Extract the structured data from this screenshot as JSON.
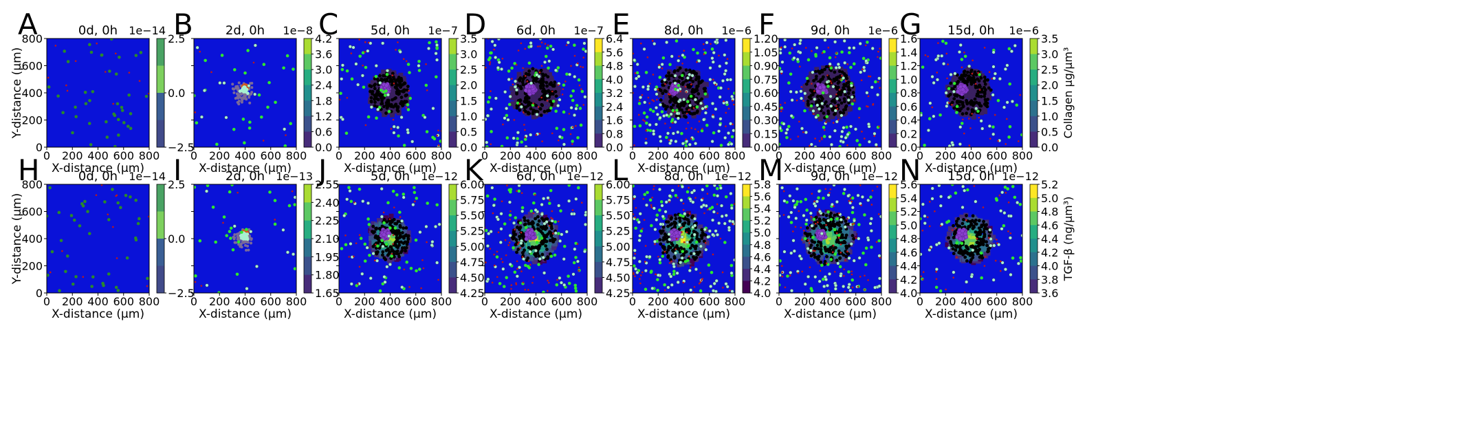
{
  "figure": {
    "x_label": "X-distance (μm)",
    "y_label": "Y-distance (μm)",
    "x_ticks": [
      "0",
      "200",
      "400",
      "600",
      "800"
    ],
    "y_ticks": [
      "0",
      "200",
      "400",
      "600",
      "800"
    ],
    "rows": [
      {
        "colorbar_label": "Collagen μg/μm³"
      },
      {
        "colorbar_label": "TGF-β (ng/μm³)"
      }
    ]
  },
  "colors": {
    "background": "#0a12d8",
    "ecm_dark": "#3a2060",
    "necrotic": "#000000",
    "tumor": "#8a3fd0",
    "fibroblast": "#2ee82e",
    "immune": "#a8f0d0",
    "debris": "#c01818"
  },
  "chart_data": [
    {
      "type": "heatmap",
      "letter": "A",
      "title": "0d, 0h",
      "cb_scale": "1e−14",
      "cb_ticks": [
        "2.5",
        "0.0",
        "−2.5"
      ],
      "cb_range": [
        -2.5,
        2.5
      ],
      "cb_bands": [
        "#4aa364",
        "#7dd05e",
        "#3b5f95",
        "#414b8a"
      ],
      "xlim": [
        0,
        800
      ],
      "ylim": [
        0,
        800
      ],
      "stage": 0
    },
    {
      "type": "heatmap",
      "letter": "B",
      "title": "2d, 0h",
      "cb_scale": "1e−8",
      "cb_ticks": [
        "4.2",
        "3.6",
        "3.0",
        "2.4",
        "1.8",
        "1.2",
        "0.6",
        "0.0"
      ],
      "cb_range": [
        0,
        4.2
      ],
      "xlim": [
        0,
        800
      ],
      "ylim": [
        0,
        800
      ],
      "stage": 1
    },
    {
      "type": "heatmap",
      "letter": "C",
      "title": "5d, 0h",
      "cb_scale": "1e−7",
      "cb_ticks": [
        "3.5",
        "3.0",
        "2.5",
        "2.0",
        "1.5",
        "1.0",
        "0.5",
        "0.0"
      ],
      "cb_range": [
        0,
        3.5
      ],
      "xlim": [
        0,
        800
      ],
      "ylim": [
        0,
        800
      ],
      "stage": 2
    },
    {
      "type": "heatmap",
      "letter": "D",
      "title": "6d, 0h",
      "cb_scale": "1e−7",
      "cb_ticks": [
        "6.4",
        "5.6",
        "4.8",
        "4.0",
        "3.2",
        "2.4",
        "1.6",
        "0.8",
        "0.0"
      ],
      "cb_range": [
        0,
        6.4
      ],
      "xlim": [
        0,
        800
      ],
      "ylim": [
        0,
        800
      ],
      "stage": 3
    },
    {
      "type": "heatmap",
      "letter": "E",
      "title": "8d, 0h",
      "cb_scale": "1e−6",
      "cb_ticks": [
        "1.20",
        "1.05",
        "0.90",
        "0.75",
        "0.60",
        "0.45",
        "0.30",
        "0.15",
        "0.00"
      ],
      "cb_range": [
        0,
        1.2
      ],
      "xlim": [
        0,
        800
      ],
      "ylim": [
        0,
        800
      ],
      "stage": 4
    },
    {
      "type": "heatmap",
      "letter": "F",
      "title": "9d, 0h",
      "cb_scale": "1e−6",
      "cb_ticks": [
        "1.6",
        "1.4",
        "1.2",
        "1.0",
        "0.8",
        "0.6",
        "0.4",
        "0.2",
        "0.0"
      ],
      "cb_range": [
        0,
        1.6
      ],
      "xlim": [
        0,
        800
      ],
      "ylim": [
        0,
        800
      ],
      "stage": 5
    },
    {
      "type": "heatmap",
      "letter": "G",
      "title": "15d, 0h",
      "cb_scale": "1e−6",
      "cb_ticks": [
        "3.5",
        "3.0",
        "2.5",
        "2.0",
        "1.5",
        "1.0",
        "0.5",
        "0.0"
      ],
      "cb_range": [
        0,
        3.5
      ],
      "xlim": [
        0,
        800
      ],
      "ylim": [
        0,
        800
      ],
      "stage": 6
    },
    {
      "type": "heatmap",
      "letter": "H",
      "title": "0d, 0h",
      "cb_scale": "1e−14",
      "cb_ticks": [
        "2.5",
        "0.0",
        "−2.5"
      ],
      "cb_range": [
        -2.5,
        2.5
      ],
      "cb_bands": [
        "#4aa364",
        "#7dd05e",
        "#3b5f95",
        "#414b8a"
      ],
      "xlim": [
        0,
        800
      ],
      "ylim": [
        0,
        800
      ],
      "stage": 0
    },
    {
      "type": "heatmap",
      "letter": "I",
      "title": "2d, 0h",
      "cb_scale": "1e−13",
      "cb_ticks": [
        "2.55",
        "2.40",
        "2.25",
        "2.10",
        "1.95",
        "1.80",
        "1.65"
      ],
      "cb_range": [
        1.65,
        2.55
      ],
      "xlim": [
        0,
        800
      ],
      "ylim": [
        0,
        800
      ],
      "stage": 1
    },
    {
      "type": "heatmap",
      "letter": "J",
      "title": "5d, 0h",
      "cb_scale": "1e−12",
      "cb_ticks": [
        "6.00",
        "5.75",
        "5.50",
        "5.25",
        "5.00",
        "4.75",
        "4.50",
        "4.25"
      ],
      "cb_range": [
        4.25,
        6.0
      ],
      "xlim": [
        0,
        800
      ],
      "ylim": [
        0,
        800
      ],
      "stage": 2,
      "tgf": true
    },
    {
      "type": "heatmap",
      "letter": "K",
      "title": "6d, 0h",
      "cb_scale": "1e−12",
      "cb_ticks": [
        "6.00",
        "5.75",
        "5.50",
        "5.25",
        "5.00",
        "4.75",
        "4.50",
        "4.25"
      ],
      "cb_range": [
        4.25,
        6.0
      ],
      "xlim": [
        0,
        800
      ],
      "ylim": [
        0,
        800
      ],
      "stage": 3,
      "tgf": true
    },
    {
      "type": "heatmap",
      "letter": "L",
      "title": "8d, 0h",
      "cb_scale": "1e−12",
      "cb_ticks": [
        "5.8",
        "5.6",
        "5.4",
        "5.2",
        "5.0",
        "4.8",
        "4.6",
        "4.4",
        "4.2",
        "4.0"
      ],
      "cb_range": [
        4.0,
        5.8
      ],
      "xlim": [
        0,
        800
      ],
      "ylim": [
        0,
        800
      ],
      "stage": 4,
      "tgf": true
    },
    {
      "type": "heatmap",
      "letter": "M",
      "title": "9d, 0h",
      "cb_scale": "1e−12",
      "cb_ticks": [
        "5.6",
        "5.4",
        "5.2",
        "5.0",
        "4.8",
        "4.6",
        "4.4",
        "4.2",
        "4.0"
      ],
      "cb_range": [
        4.0,
        5.6
      ],
      "xlim": [
        0,
        800
      ],
      "ylim": [
        0,
        800
      ],
      "stage": 5,
      "tgf": true
    },
    {
      "type": "heatmap",
      "letter": "N",
      "title": "15d, 0h",
      "cb_scale": "1e−12",
      "cb_ticks": [
        "5.2",
        "5.0",
        "4.8",
        "4.6",
        "4.4",
        "4.2",
        "4.0",
        "3.8",
        "3.6"
      ],
      "cb_range": [
        3.6,
        5.2
      ],
      "xlim": [
        0,
        800
      ],
      "ylim": [
        0,
        800
      ],
      "stage": 6,
      "tgf": true
    }
  ]
}
